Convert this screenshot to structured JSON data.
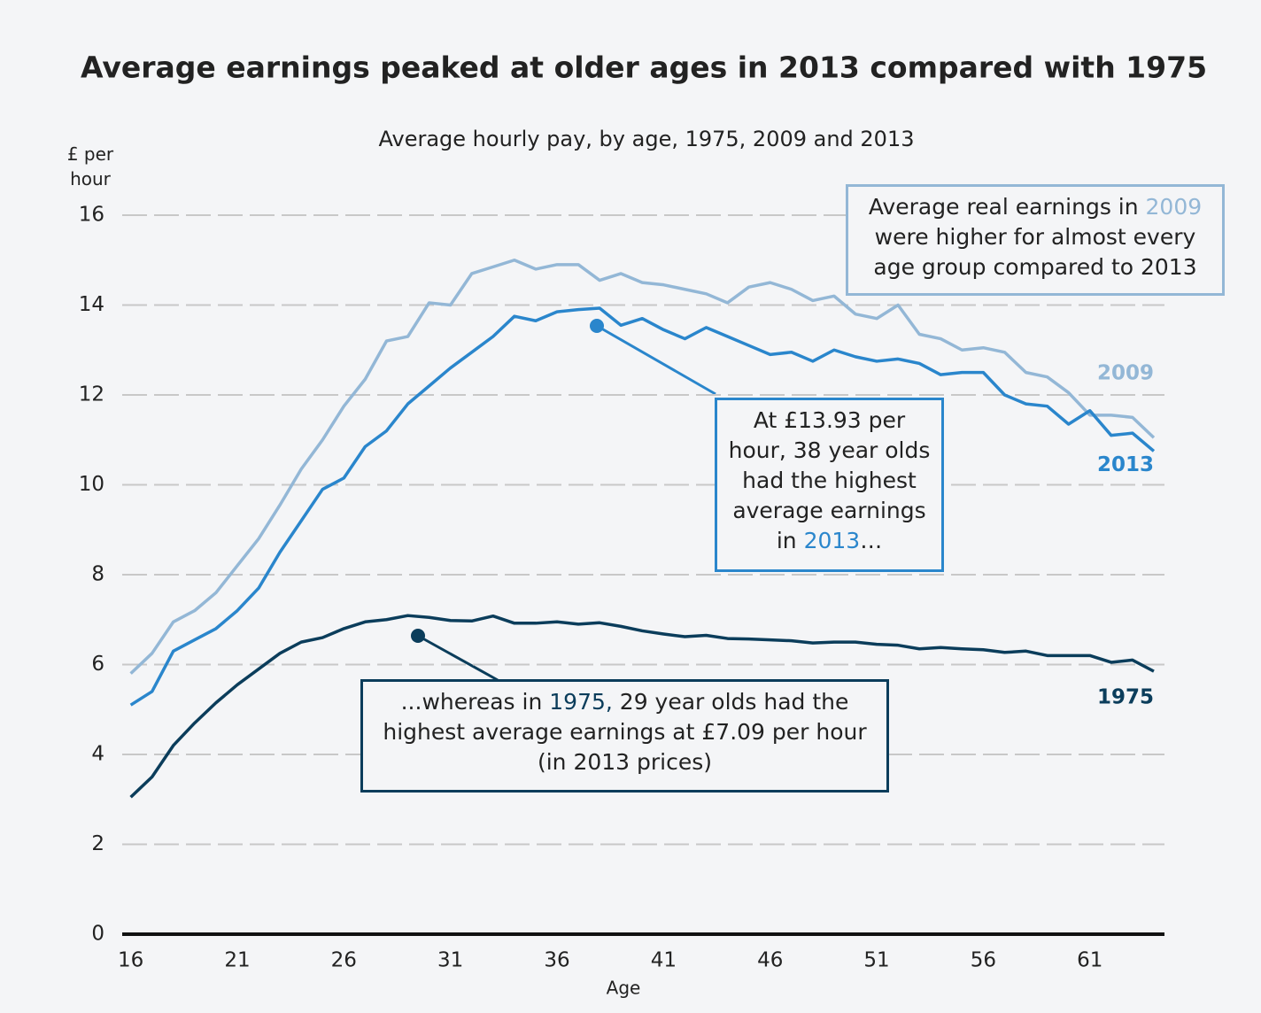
{
  "chart_data": {
    "type": "line",
    "title": "Average earnings peaked at older ages in 2013 compared with 1975",
    "subtitle": "Average hourly pay, by age, 1975, 2009 and 2013",
    "y_label": "£ per hour",
    "x_label": "Age",
    "x": [
      16,
      17,
      18,
      19,
      20,
      21,
      22,
      23,
      24,
      25,
      26,
      27,
      28,
      29,
      30,
      31,
      32,
      33,
      34,
      35,
      36,
      37,
      38,
      39,
      40,
      41,
      42,
      43,
      44,
      45,
      46,
      47,
      48,
      49,
      50,
      51,
      52,
      53,
      54,
      55,
      56,
      57,
      58,
      59,
      60,
      61,
      62,
      63,
      64
    ],
    "xlim": [
      15.6,
      64.5
    ],
    "xticks": [
      16,
      21,
      26,
      31,
      36,
      41,
      46,
      51,
      56,
      61
    ],
    "ylim": [
      0,
      16
    ],
    "yticks": [
      0,
      2,
      4,
      6,
      8,
      10,
      12,
      14,
      16
    ],
    "grid": true,
    "series": [
      {
        "name": "2009",
        "color": "#93b7d6",
        "values": [
          5.8,
          6.25,
          6.95,
          7.2,
          7.6,
          8.2,
          8.8,
          9.55,
          10.35,
          11.0,
          11.75,
          12.35,
          13.2,
          13.3,
          14.05,
          14.0,
          14.7,
          14.85,
          15.0,
          14.8,
          14.9,
          14.9,
          14.55,
          14.7,
          14.5,
          14.45,
          14.35,
          14.25,
          14.05,
          14.4,
          14.5,
          14.35,
          14.1,
          14.2,
          13.8,
          13.7,
          14.0,
          13.35,
          13.25,
          13.0,
          13.05,
          12.95,
          12.5,
          12.4,
          12.05,
          11.55,
          11.55,
          11.5,
          11.05
        ]
      },
      {
        "name": "2013",
        "color": "#2a86cc",
        "values": [
          5.1,
          5.4,
          6.3,
          6.55,
          6.8,
          7.2,
          7.7,
          8.5,
          9.2,
          9.9,
          10.15,
          10.85,
          11.2,
          11.8,
          12.2,
          12.6,
          12.95,
          13.3,
          13.75,
          13.65,
          13.85,
          13.9,
          13.93,
          13.55,
          13.7,
          13.45,
          13.25,
          13.5,
          13.3,
          13.1,
          12.9,
          12.95,
          12.75,
          13.0,
          12.85,
          12.75,
          12.8,
          12.7,
          12.45,
          12.5,
          12.5,
          12.0,
          11.8,
          11.75,
          11.35,
          11.65,
          11.1,
          11.15,
          10.75
        ]
      },
      {
        "name": "1975",
        "color": "#0b3d5b",
        "values": [
          3.05,
          3.5,
          4.2,
          4.7,
          5.15,
          5.55,
          5.9,
          6.25,
          6.5,
          6.6,
          6.8,
          6.95,
          7.0,
          7.09,
          7.05,
          6.98,
          6.97,
          7.08,
          6.92,
          6.92,
          6.95,
          6.9,
          6.93,
          6.85,
          6.75,
          6.68,
          6.62,
          6.65,
          6.58,
          6.57,
          6.55,
          6.53,
          6.48,
          6.5,
          6.5,
          6.45,
          6.43,
          6.35,
          6.38,
          6.35,
          6.33,
          6.27,
          6.3,
          6.2,
          6.2,
          6.2,
          6.05,
          6.1,
          5.85
        ]
      }
    ],
    "annotations": [
      {
        "parts": [
          "Average real earnings in ",
          "2009",
          " were higher for almost every age group compared to 2013"
        ],
        "highlight": 1,
        "color": "#93b7d6"
      },
      {
        "parts": [
          "At £13.93 per hour, 38 year olds had the highest average earnings in ",
          "2013",
          "…"
        ],
        "highlight": 1,
        "color": "#2a86cc"
      },
      {
        "parts": [
          "...whereas in ",
          "1975,",
          " 29 year olds had the highest average earnings at £7.09 per hour (in 2013 prices)"
        ],
        "highlight": 1,
        "color": "#0b3d5b"
      }
    ]
  }
}
